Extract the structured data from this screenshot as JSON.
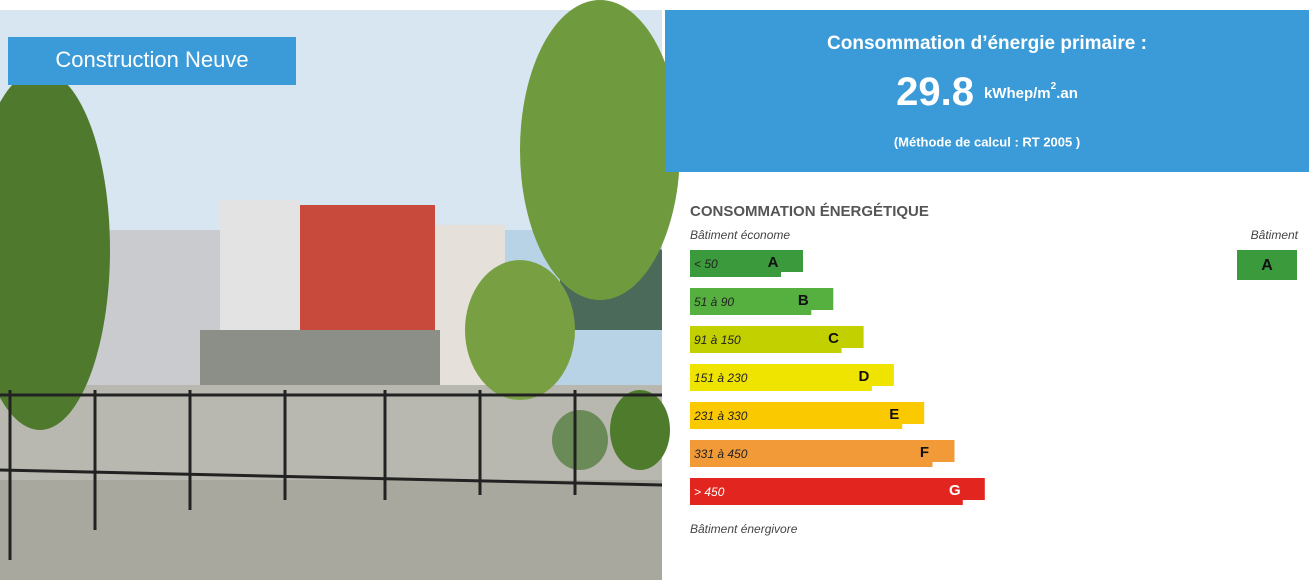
{
  "photo_caption": "Construction Neuve",
  "header": {
    "title": "Consommation d’énergie primaire :",
    "value": "29.8",
    "unit": "kWhep/m",
    "unit_sup": "2",
    "unit_suffix": ".an",
    "method": "(Méthode de calcul : RT 2005 )"
  },
  "label": {
    "title": "CONSOMMATION ÉNERGÉTIQUE",
    "top_note": "Bâtiment économe",
    "bottom_note": "Bâtiment énergivore",
    "building_heading": "Bâtiment",
    "building_class": "A",
    "classes": [
      {
        "range": "< 50",
        "letter": "A",
        "color": "#3a9a3c"
      },
      {
        "range": "51 à 90",
        "letter": "B",
        "color": "#55b03f"
      },
      {
        "range": "91 à 150",
        "letter": "C",
        "color": "#c2d000"
      },
      {
        "range": "151 à 230",
        "letter": "D",
        "color": "#efe300"
      },
      {
        "range": "231 à 330",
        "letter": "E",
        "color": "#fbc900"
      },
      {
        "range": "331 à 450",
        "letter": "F",
        "color": "#f29a37"
      },
      {
        "range": "> 450",
        "letter": "G",
        "color": "#e2261f"
      }
    ]
  }
}
